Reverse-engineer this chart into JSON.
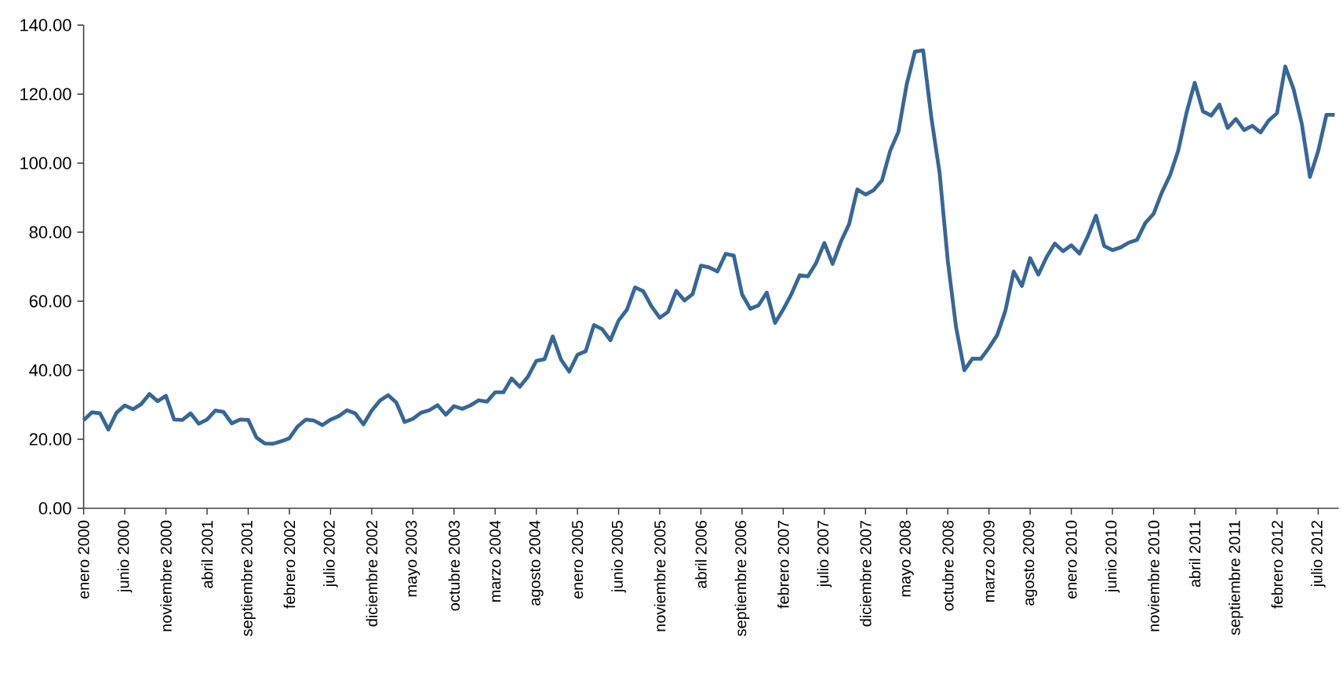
{
  "chart_data": {
    "type": "line",
    "categories": [
      "enero 2000",
      null,
      null,
      null,
      null,
      "junio 2000",
      null,
      null,
      null,
      null,
      "noviembre 2000",
      null,
      null,
      null,
      null,
      "abril 2001",
      null,
      null,
      null,
      null,
      "septiembre 2001",
      null,
      null,
      null,
      null,
      "febrero 2002",
      null,
      null,
      null,
      null,
      "julio 2002",
      null,
      null,
      null,
      null,
      "diciembre 2002",
      null,
      null,
      null,
      null,
      "mayo 2003",
      null,
      null,
      null,
      null,
      "octubre 2003",
      null,
      null,
      null,
      null,
      "marzo 2004",
      null,
      null,
      null,
      null,
      "agosto 2004",
      null,
      null,
      null,
      null,
      "enero 2005",
      null,
      null,
      null,
      null,
      "junio 2005",
      null,
      null,
      null,
      null,
      "noviembre 2005",
      null,
      null,
      null,
      null,
      "abril 2006",
      null,
      null,
      null,
      null,
      "septiembre 2006",
      null,
      null,
      null,
      null,
      "febrero 2007",
      null,
      null,
      null,
      null,
      "julio 2007",
      null,
      null,
      null,
      null,
      "diciembre 2007",
      null,
      null,
      null,
      null,
      "mayo 2008",
      null,
      null,
      null,
      null,
      "octubre 2008",
      null,
      null,
      null,
      null,
      "marzo 2009",
      null,
      null,
      null,
      null,
      "agosto 2009",
      null,
      null,
      null,
      null,
      "enero 2010",
      null,
      null,
      null,
      null,
      "junio 2010",
      null,
      null,
      null,
      null,
      "noviembre 2010",
      null,
      null,
      null,
      null,
      "abril 2011",
      null,
      null,
      null,
      null,
      "septiembre 2011",
      null,
      null,
      null,
      null,
      "febrero 2012",
      null,
      null,
      null,
      null,
      "julio 2012",
      null,
      null
    ],
    "series": [
      {
        "color": "#36679a",
        "values": [
          25.5,
          27.8,
          27.5,
          22.8,
          27.7,
          29.8,
          28.7,
          30.2,
          33.1,
          31.0,
          32.6,
          25.7,
          25.6,
          27.5,
          24.5,
          25.7,
          28.3,
          27.9,
          24.6,
          25.7,
          25.6,
          20.5,
          18.8,
          18.7,
          19.4,
          20.3,
          23.7,
          25.7,
          25.4,
          24.1,
          25.7,
          26.7,
          28.4,
          27.5,
          24.3,
          28.3,
          31.2,
          32.8,
          30.6,
          25.0,
          25.9,
          27.7,
          28.4,
          29.9,
          27.1,
          29.6,
          28.8,
          29.8,
          31.3,
          30.9,
          33.6,
          33.6,
          37.6,
          35.2,
          38.2,
          42.7,
          43.2,
          49.8,
          43.1,
          39.6,
          44.5,
          45.5,
          53.1,
          51.9,
          48.7,
          54.4,
          57.5,
          64.0,
          62.9,
          58.5,
          55.2,
          56.9,
          63.0,
          60.2,
          62.1,
          70.3,
          69.8,
          68.6,
          73.7,
          73.2,
          62.0,
          57.8,
          58.8,
          62.5,
          53.7,
          57.6,
          62.1,
          67.5,
          67.2,
          71.1,
          76.9,
          70.8,
          77.2,
          82.3,
          92.4,
          90.9,
          92.2,
          95.0,
          103.6,
          109.1,
          122.8,
          132.3,
          132.7,
          113.2,
          97.2,
          71.6,
          52.5,
          40.0,
          43.4,
          43.3,
          46.5,
          50.2,
          57.3,
          68.6,
          64.4,
          72.5,
          67.7,
          72.8,
          76.7,
          74.5,
          76.2,
          73.8,
          78.8,
          84.8,
          76.0,
          74.8,
          75.6,
          77.0,
          77.8,
          82.7,
          85.3,
          91.5,
          96.5,
          103.7,
          114.6,
          123.3,
          115.0,
          113.8,
          117.0,
          110.2,
          112.8,
          109.6,
          110.8,
          108.9,
          112.4,
          114.5,
          128.0,
          121.5,
          111.5,
          96.0,
          103.5,
          114.0,
          114.0
        ]
      }
    ],
    "ylim": [
      0,
      140
    ],
    "yticks": [
      {
        "value": 0,
        "label": "0.00"
      },
      {
        "value": 20,
        "label": "20.00"
      },
      {
        "value": 40,
        "label": "40.00"
      },
      {
        "value": 60,
        "label": "60.00"
      },
      {
        "value": 80,
        "label": "80.00"
      },
      {
        "value": 100,
        "label": "100.00"
      },
      {
        "value": 120,
        "label": "120.00"
      },
      {
        "value": 140,
        "label": "140.00"
      }
    ]
  }
}
